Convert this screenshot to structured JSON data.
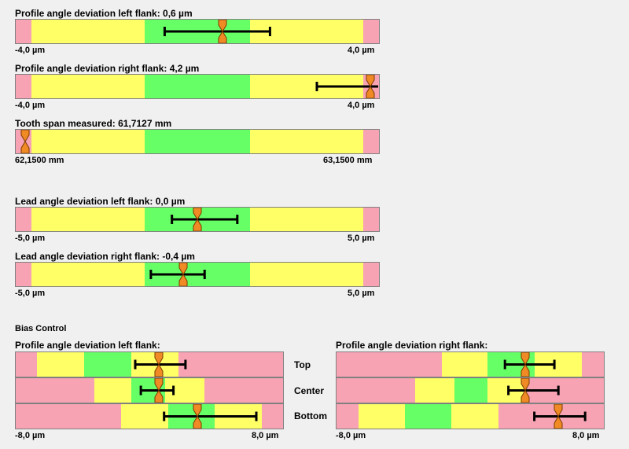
{
  "colors": {
    "red": "#f8a3b4",
    "yellow": "#ffff66",
    "green": "#66ff66",
    "marker": "#f08a24",
    "errorbar": "#000000"
  },
  "gauges": [
    {
      "id": "profile-left",
      "title": "Profile angle deviation left flank: 0,6 µm",
      "min_label": "-4,0 µm",
      "max_label": "4,0 µm",
      "zones": [
        {
          "from": 0.0,
          "to": 0.043,
          "color": "red"
        },
        {
          "from": 0.043,
          "to": 0.354,
          "color": "yellow"
        },
        {
          "from": 0.354,
          "to": 0.646,
          "color": "green"
        },
        {
          "from": 0.646,
          "to": 0.957,
          "color": "yellow"
        },
        {
          "from": 0.957,
          "to": 1.0,
          "color": "red"
        }
      ],
      "marker": 0.57,
      "range": [
        0.41,
        0.7
      ]
    },
    {
      "id": "profile-right",
      "title": "Profile angle deviation right flank: 4,2 µm",
      "min_label": "-4,0 µm",
      "max_label": "4,0 µm",
      "zones": [
        {
          "from": 0.0,
          "to": 0.043,
          "color": "red"
        },
        {
          "from": 0.043,
          "to": 0.354,
          "color": "yellow"
        },
        {
          "from": 0.354,
          "to": 0.646,
          "color": "green"
        },
        {
          "from": 0.646,
          "to": 0.957,
          "color": "yellow"
        },
        {
          "from": 0.957,
          "to": 1.0,
          "color": "red"
        }
      ],
      "marker": 0.976,
      "range": [
        0.829,
        1.0
      ]
    },
    {
      "id": "tooth-span",
      "title": "Tooth span measured: 61,7127 mm",
      "min_label": "62,1500 mm",
      "max_label": "63,1500 mm",
      "zones": [
        {
          "from": 0.0,
          "to": 0.043,
          "color": "red"
        },
        {
          "from": 0.043,
          "to": 0.354,
          "color": "yellow"
        },
        {
          "from": 0.354,
          "to": 0.646,
          "color": "green"
        },
        {
          "from": 0.646,
          "to": 0.957,
          "color": "yellow"
        },
        {
          "from": 0.957,
          "to": 1.0,
          "color": "red"
        }
      ],
      "marker": 0.026,
      "range": null
    },
    {
      "id": "lead-left",
      "title": "Lead angle deviation left flank: 0,0 µm",
      "min_label": "-5,0 µm",
      "max_label": "5,0 µm",
      "zones": [
        {
          "from": 0.0,
          "to": 0.043,
          "color": "red"
        },
        {
          "from": 0.043,
          "to": 0.354,
          "color": "yellow"
        },
        {
          "from": 0.354,
          "to": 0.646,
          "color": "green"
        },
        {
          "from": 0.646,
          "to": 0.957,
          "color": "yellow"
        },
        {
          "from": 0.957,
          "to": 1.0,
          "color": "red"
        }
      ],
      "marker": 0.5,
      "range": [
        0.43,
        0.61
      ]
    },
    {
      "id": "lead-right",
      "title": "Lead angle deviation right flank: -0,4 µm",
      "min_label": "-5,0 µm",
      "max_label": "5,0 µm",
      "zones": [
        {
          "from": 0.0,
          "to": 0.043,
          "color": "red"
        },
        {
          "from": 0.043,
          "to": 0.354,
          "color": "yellow"
        },
        {
          "from": 0.354,
          "to": 0.646,
          "color": "green"
        },
        {
          "from": 0.646,
          "to": 0.957,
          "color": "yellow"
        },
        {
          "from": 0.957,
          "to": 1.0,
          "color": "red"
        }
      ],
      "marker": 0.46,
      "range": [
        0.372,
        0.52
      ]
    }
  ],
  "bias": {
    "heading": "Bias Control",
    "row_labels": [
      "Top",
      "Center",
      "Bottom"
    ],
    "left": {
      "title": "Profile angle deviation left flank:",
      "min_label": "-8,0 µm",
      "max_label": "8,0 µm",
      "rows": [
        {
          "zones": [
            {
              "from": 0.0,
              "to": 0.08,
              "color": "red"
            },
            {
              "from": 0.08,
              "to": 0.255,
              "color": "yellow"
            },
            {
              "from": 0.255,
              "to": 0.433,
              "color": "green"
            },
            {
              "from": 0.433,
              "to": 0.61,
              "color": "yellow"
            },
            {
              "from": 0.61,
              "to": 1.0,
              "color": "red"
            }
          ],
          "marker": 0.535,
          "range": [
            0.447,
            0.635
          ]
        },
        {
          "zones": [
            {
              "from": 0.0,
              "to": 0.295,
              "color": "red"
            },
            {
              "from": 0.295,
              "to": 0.432,
              "color": "yellow"
            },
            {
              "from": 0.432,
              "to": 0.56,
              "color": "green"
            },
            {
              "from": 0.56,
              "to": 0.705,
              "color": "yellow"
            },
            {
              "from": 0.705,
              "to": 1.0,
              "color": "red"
            }
          ],
          "marker": 0.535,
          "range": [
            0.468,
            0.59
          ]
        },
        {
          "zones": [
            {
              "from": 0.0,
              "to": 0.395,
              "color": "red"
            },
            {
              "from": 0.395,
              "to": 0.572,
              "color": "yellow"
            },
            {
              "from": 0.572,
              "to": 0.745,
              "color": "green"
            },
            {
              "from": 0.745,
              "to": 0.92,
              "color": "yellow"
            },
            {
              "from": 0.92,
              "to": 1.0,
              "color": "red"
            }
          ],
          "marker": 0.68,
          "range": [
            0.555,
            0.9
          ]
        }
      ]
    },
    "right": {
      "title": "Profile angle deviation right flank:",
      "min_label": "-8,0 µm",
      "max_label": "8,0 µm",
      "rows": [
        {
          "zones": [
            {
              "from": 0.0,
              "to": 0.395,
              "color": "red"
            },
            {
              "from": 0.395,
              "to": 0.565,
              "color": "yellow"
            },
            {
              "from": 0.565,
              "to": 0.74,
              "color": "green"
            },
            {
              "from": 0.74,
              "to": 0.917,
              "color": "yellow"
            },
            {
              "from": 0.917,
              "to": 1.0,
              "color": "red"
            }
          ],
          "marker": 0.705,
          "range": [
            0.63,
            0.815
          ]
        },
        {
          "zones": [
            {
              "from": 0.0,
              "to": 0.295,
              "color": "red"
            },
            {
              "from": 0.295,
              "to": 0.44,
              "color": "yellow"
            },
            {
              "from": 0.44,
              "to": 0.565,
              "color": "green"
            },
            {
              "from": 0.565,
              "to": 0.71,
              "color": "yellow"
            },
            {
              "from": 0.71,
              "to": 1.0,
              "color": "red"
            }
          ],
          "marker": 0.705,
          "range": [
            0.643,
            0.83
          ]
        },
        {
          "zones": [
            {
              "from": 0.0,
              "to": 0.083,
              "color": "red"
            },
            {
              "from": 0.083,
              "to": 0.255,
              "color": "yellow"
            },
            {
              "from": 0.255,
              "to": 0.428,
              "color": "green"
            },
            {
              "from": 0.428,
              "to": 0.605,
              "color": "yellow"
            },
            {
              "from": 0.605,
              "to": 1.0,
              "color": "red"
            }
          ],
          "marker": 0.83,
          "range": [
            0.74,
            0.93
          ]
        }
      ]
    }
  }
}
